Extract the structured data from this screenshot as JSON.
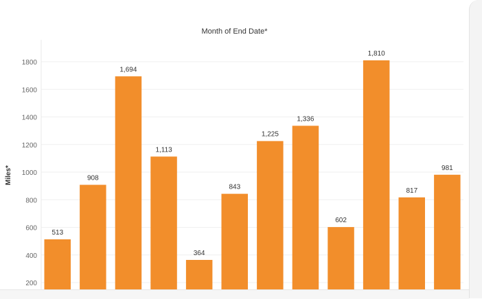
{
  "chart_data": {
    "type": "bar",
    "title": "Month of End Date*",
    "ylabel": "Miles*",
    "xlabel": "",
    "ylim": [
      170,
      1900
    ],
    "yticks": [
      200,
      400,
      600,
      800,
      1000,
      1200,
      1400,
      1600,
      1800
    ],
    "values": [
      513,
      908,
      1694,
      1113,
      364,
      843,
      1225,
      1336,
      602,
      1810,
      817,
      981
    ],
    "value_labels": [
      "513",
      "908",
      "1,694",
      "1,113",
      "364",
      "843",
      "1,225",
      "1,336",
      "602",
      "1,810",
      "817",
      "981"
    ],
    "bar_color": "#f28e2b",
    "grid": true
  }
}
